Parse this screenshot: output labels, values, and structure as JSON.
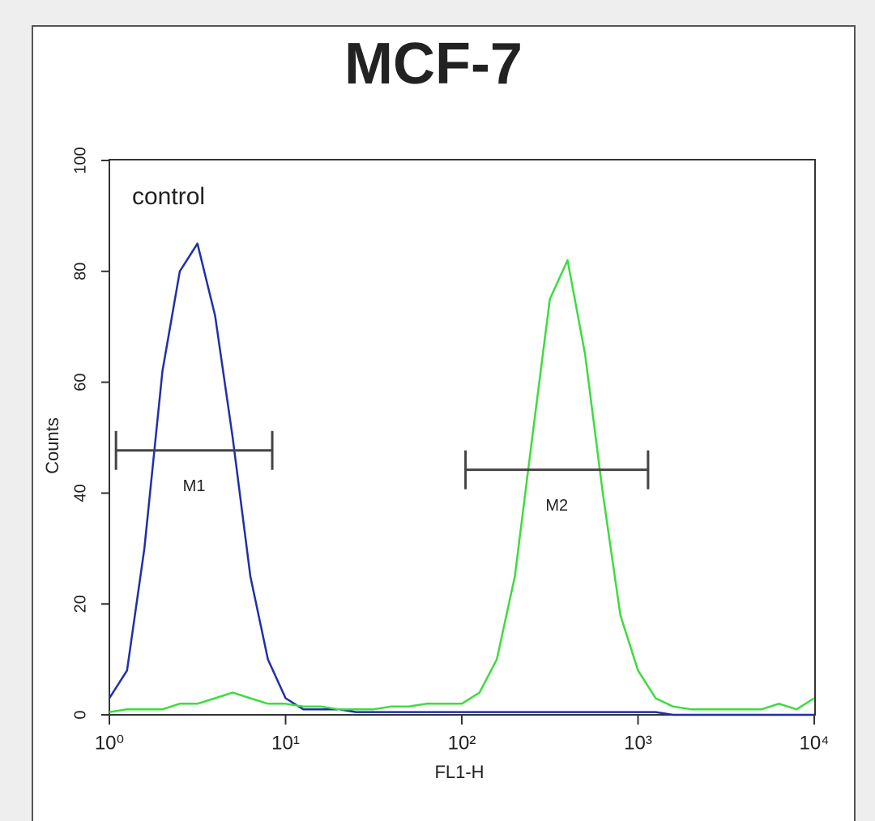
{
  "chart_data": {
    "type": "line",
    "title": "MCF-7",
    "xlabel": "FL1-H",
    "ylabel": "Counts",
    "annotation": "control",
    "xscale": "log",
    "xlim": [
      1,
      10000
    ],
    "ylim": [
      0,
      100
    ],
    "xticks": [
      {
        "value": 1,
        "label": "10⁰"
      },
      {
        "value": 10,
        "label": "10¹"
      },
      {
        "value": 100,
        "label": "10²"
      },
      {
        "value": 1000,
        "label": "10³"
      },
      {
        "value": 10000,
        "label": "10⁴"
      }
    ],
    "yticks": [
      0,
      20,
      40,
      60,
      80,
      100
    ],
    "x": [
      1,
      1.26,
      1.58,
      2,
      2.51,
      3.16,
      3.98,
      5.01,
      6.31,
      7.94,
      10,
      12.6,
      15.8,
      20,
      25.1,
      31.6,
      39.8,
      50.1,
      63.1,
      79.4,
      100,
      126,
      158,
      200,
      251,
      316,
      398,
      501,
      631,
      794,
      1000,
      1260,
      1580,
      2000,
      2510,
      3160,
      3980,
      5010,
      6310,
      7940,
      10000
    ],
    "series": [
      {
        "color": "#1f2fa8",
        "values": [
          3,
          8,
          30,
          62,
          80,
          85,
          72,
          50,
          25,
          10,
          3,
          1,
          1,
          1,
          0.5,
          0.5,
          0.5,
          0.5,
          0.5,
          0.5,
          0.5,
          0.5,
          0.5,
          0.5,
          0.5,
          0.5,
          0.5,
          0.5,
          0.5,
          0.5,
          0.5,
          0.5,
          0,
          0,
          0,
          0,
          0,
          0,
          0,
          0,
          0
        ]
      },
      {
        "color": "#3ddc3d",
        "values": [
          0.5,
          1,
          1,
          1,
          2,
          2,
          3,
          4,
          3,
          2,
          2,
          1.5,
          1.5,
          1,
          1,
          1,
          1.5,
          1.5,
          2,
          2,
          2,
          4,
          10,
          25,
          50,
          75,
          82,
          65,
          40,
          18,
          8,
          3,
          1.5,
          1,
          1,
          1,
          1,
          1,
          2,
          1,
          3
        ]
      }
    ],
    "markers": [
      {
        "label": "M1",
        "x": [
          1.09,
          8.4
        ],
        "y": 47.7
      },
      {
        "label": "M2",
        "x": [
          105,
          1140
        ],
        "y": 44.2
      }
    ]
  }
}
